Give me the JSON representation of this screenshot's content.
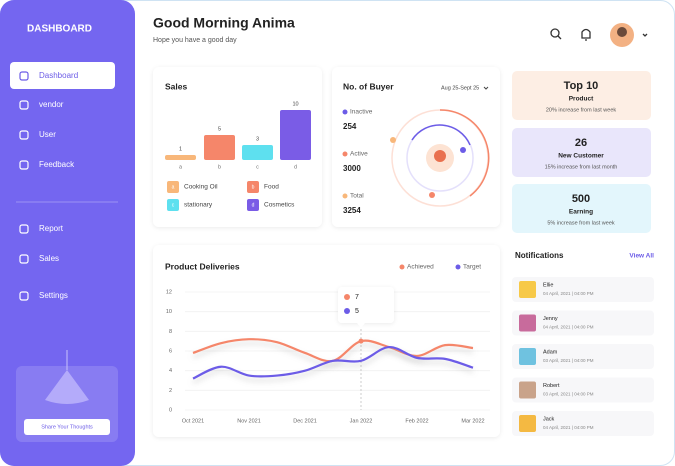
{
  "sidebar": {
    "title": "DASHBOARD",
    "menu": [
      "Dashboard",
      "vendor",
      "User",
      "Feedback"
    ],
    "menu2": [
      "Report",
      "Sales",
      "Settings"
    ],
    "button": "Share Your Thoughts"
  },
  "header": {
    "title": "Good Morning Anima",
    "subtitle": "Hope you have a good day"
  },
  "sales": {
    "type": "bar",
    "title": "Sales",
    "categories": [
      "a",
      "b",
      "c",
      "d"
    ],
    "values": [
      1,
      5,
      3,
      10
    ],
    "colors": [
      "#f8b77a",
      "#f5866a",
      "#5ee0ef",
      "#7a5ce6"
    ],
    "legend": [
      "Cooking Oil",
      "Food",
      "stationary",
      "Cosmetics"
    ]
  },
  "buyers": {
    "title": "No. of Buyer",
    "range": "Aug 25-Sept 25",
    "items": [
      {
        "label": "Inactive",
        "value": 254,
        "color": "#6c5ce7"
      },
      {
        "label": "Active",
        "value": 3000,
        "color": "#f5866a"
      },
      {
        "label": "Total",
        "value": 3254,
        "color": "#f8b77a"
      }
    ]
  },
  "stats": [
    {
      "value": "Top 10",
      "label": "Product",
      "note": "20% increase from last week",
      "color": "#fdeee4"
    },
    {
      "value": 26,
      "label": "New Customer",
      "note": "15% increase from last month",
      "color": "#e9e6fb"
    },
    {
      "value": 500,
      "label": "Earning",
      "note": "5% increase from last week",
      "color": "#e3f6fc"
    }
  ],
  "chart_data": {
    "type": "line",
    "title": "Product Deliveries",
    "categories": [
      "Oct 2021",
      null,
      "Nov 2021",
      null,
      "Dec 2021",
      null,
      "Jan 2022",
      null,
      "Feb 2022",
      null,
      "Mar 2022"
    ],
    "series": [
      {
        "name": "Achieved",
        "color": "#f5866a",
        "values": [
          5.8,
          6.8,
          7.2,
          6.9,
          5.8,
          5.0,
          7,
          6.4,
          5.5,
          6.6,
          6.3
        ]
      },
      {
        "name": "Target",
        "color": "#6c5ce7",
        "values": [
          3.2,
          4.4,
          3.5,
          3.5,
          4.0,
          5.0,
          5,
          6.4,
          5.3,
          5.2,
          4.3
        ]
      }
    ],
    "ylim": [
      0,
      12
    ],
    "yticks": [
      0,
      2,
      4,
      6,
      8,
      10,
      12
    ],
    "grid": true
  },
  "notifications": {
    "title": "Notifications",
    "view_all": "View All",
    "items": [
      {
        "name": "Ellie",
        "time": "04 April, 2021 | 04:00 PM"
      },
      {
        "name": "Jenny",
        "time": "04 April, 2021 | 04:00 PM"
      },
      {
        "name": "Adam",
        "time": "03 April, 2021 | 04:00 PM"
      },
      {
        "name": "Robert",
        "time": "03 April, 2021 | 04:00 PM"
      },
      {
        "name": "Jack",
        "time": "04 April, 2021 | 04:00 PM"
      }
    ]
  }
}
